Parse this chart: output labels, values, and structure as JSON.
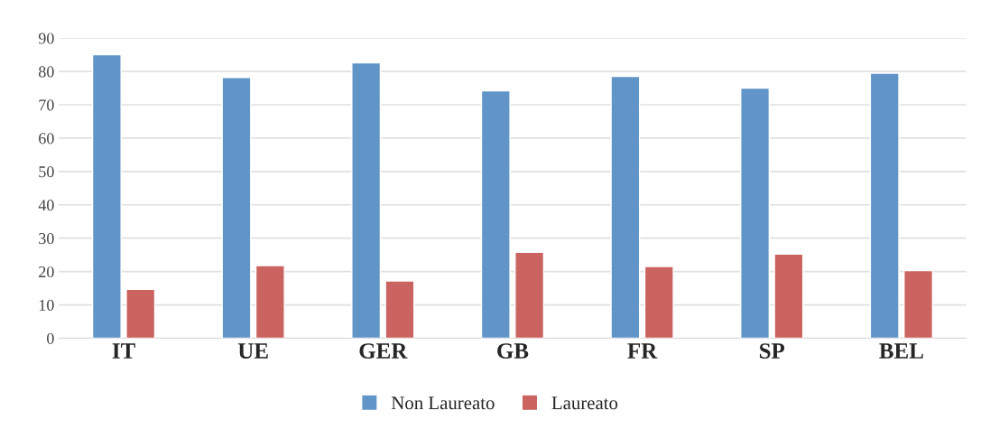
{
  "chart_data": {
    "type": "bar",
    "categories": [
      "IT",
      "UE",
      "GER",
      "GB",
      "FR",
      "SP",
      "BEL"
    ],
    "series": [
      {
        "name": "Non Laureato",
        "color": "#6195c8",
        "values": [
          85,
          78.2,
          82.6,
          74.2,
          78.5,
          75,
          79.5
        ]
      },
      {
        "name": "Laureato",
        "color": "#cb6360",
        "values": [
          14.7,
          21.8,
          17.2,
          25.8,
          21.5,
          25.2,
          20.3
        ]
      }
    ],
    "ylim": [
      0,
      90
    ],
    "yticks": [
      0,
      10,
      20,
      30,
      40,
      50,
      60,
      70,
      80,
      90
    ],
    "grid": "y",
    "legend": "bottom"
  }
}
